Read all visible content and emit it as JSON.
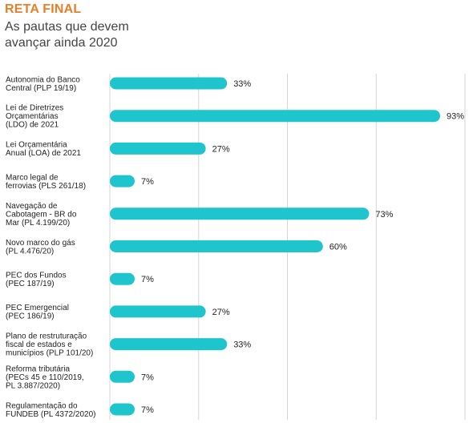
{
  "header": {
    "kicker": "RETA FINAL",
    "subtitle_line1": "As pautas que devem",
    "subtitle_line2": "avançar ainda 2020"
  },
  "colors": {
    "bar": "#1ec5cc",
    "kicker": "#e87f26",
    "gridline": "#d6d6d6",
    "text": "#222222"
  },
  "chart_data": {
    "type": "bar",
    "orientation": "horizontal",
    "title": "RETA FINAL",
    "subtitle": "As pautas que devem avançar ainda 2020",
    "xlabel": "",
    "ylabel": "",
    "xlim": [
      0,
      100
    ],
    "grid": true,
    "value_suffix": "%",
    "categories": [
      [
        "Autonomia do Banco",
        "Central (PLP 19/19)"
      ],
      [
        "Lei de Diretrizes",
        "Orçamentárias",
        "(LDO) de 2021"
      ],
      [
        "Lei Orçamentária",
        "Anual (LOA) de 2021"
      ],
      [
        "Marco legal de",
        "ferrovias (PLS 261/18)"
      ],
      [
        "Navegação de",
        "Cabotagem - BR do",
        "Mar (PL 4.199/20)"
      ],
      [
        "Novo marco do gás",
        "(PL 4.476/20)"
      ],
      [
        "PEC dos Fundos",
        "(PEC 187/19)"
      ],
      [
        "PEC Emergencial",
        "(PEC 186/19)"
      ],
      [
        "Plano de restruturação",
        "fiscal de estados e",
        "municípios (PLP 101/20)"
      ],
      [
        "Reforma tributária",
        "(PECs 45 e 110/2019,",
        "PL 3.887/2020)"
      ],
      [
        "Regulamentação do",
        "FUNDEB (PL 4372/2020)"
      ]
    ],
    "values": [
      33,
      93,
      27,
      7,
      73,
      60,
      7,
      27,
      33,
      7,
      7
    ],
    "value_labels": [
      "33%",
      "93%",
      "27%",
      "7%",
      "73%",
      "60%",
      "7%",
      "27%",
      "33%",
      "7%",
      "7%"
    ]
  }
}
